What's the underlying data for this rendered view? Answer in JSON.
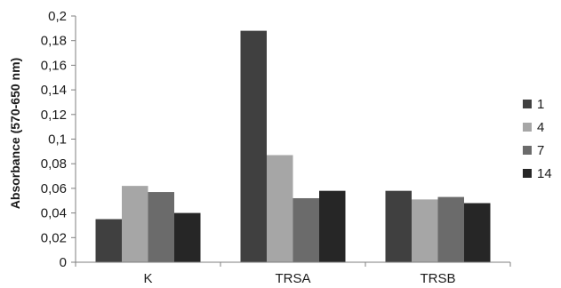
{
  "chart_data": {
    "type": "bar",
    "title": "",
    "xlabel": "",
    "ylabel": "Absorbance (570-650 nm)",
    "categories": [
      "K",
      "TRSA",
      "TRSB"
    ],
    "ylim": [
      0,
      0.2
    ],
    "yticks": [
      "0",
      "0,02",
      "0,04",
      "0,06",
      "0,08",
      "0,1",
      "0,12",
      "0,14",
      "0,16",
      "0,18",
      "0,2"
    ],
    "grid": false,
    "legend_position": "right",
    "series": [
      {
        "name": "1",
        "color": "#404040",
        "values": [
          0.035,
          0.188,
          0.058
        ]
      },
      {
        "name": "4",
        "color": "#a6a6a6",
        "values": [
          0.062,
          0.087,
          0.051
        ]
      },
      {
        "name": "7",
        "color": "#6b6b6b",
        "values": [
          0.057,
          0.052,
          0.053
        ]
      },
      {
        "name": "14",
        "color": "#262626",
        "values": [
          0.04,
          0.058,
          0.048
        ]
      }
    ]
  }
}
